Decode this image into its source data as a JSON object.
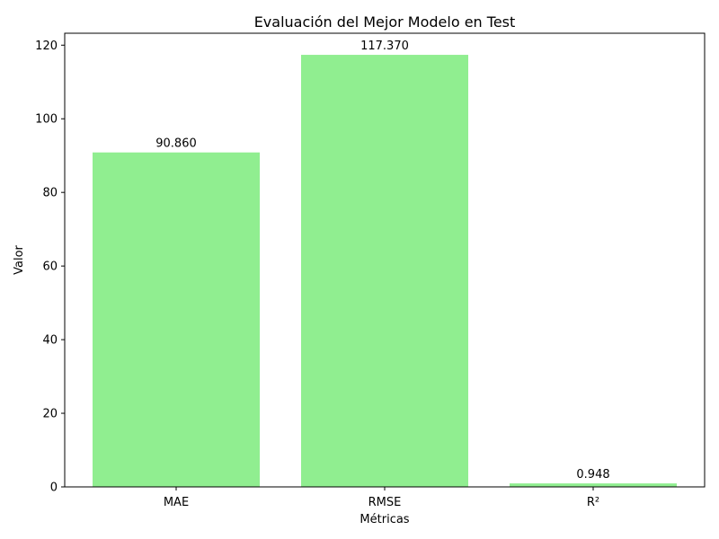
{
  "chart_data": {
    "type": "bar",
    "title": "Evaluación del Mejor Modelo en Test",
    "xlabel": "Métricas",
    "ylabel": "Valor",
    "categories": [
      "MAE",
      "RMSE",
      "R²"
    ],
    "values": [
      90.86,
      117.37,
      0.948
    ],
    "value_labels": [
      "90.860",
      "117.370",
      "0.948"
    ],
    "ylim": [
      0,
      123.24
    ],
    "yticks": [
      0,
      20,
      40,
      60,
      80,
      100,
      120
    ],
    "grid": false,
    "bar_color": "#90ee90"
  }
}
